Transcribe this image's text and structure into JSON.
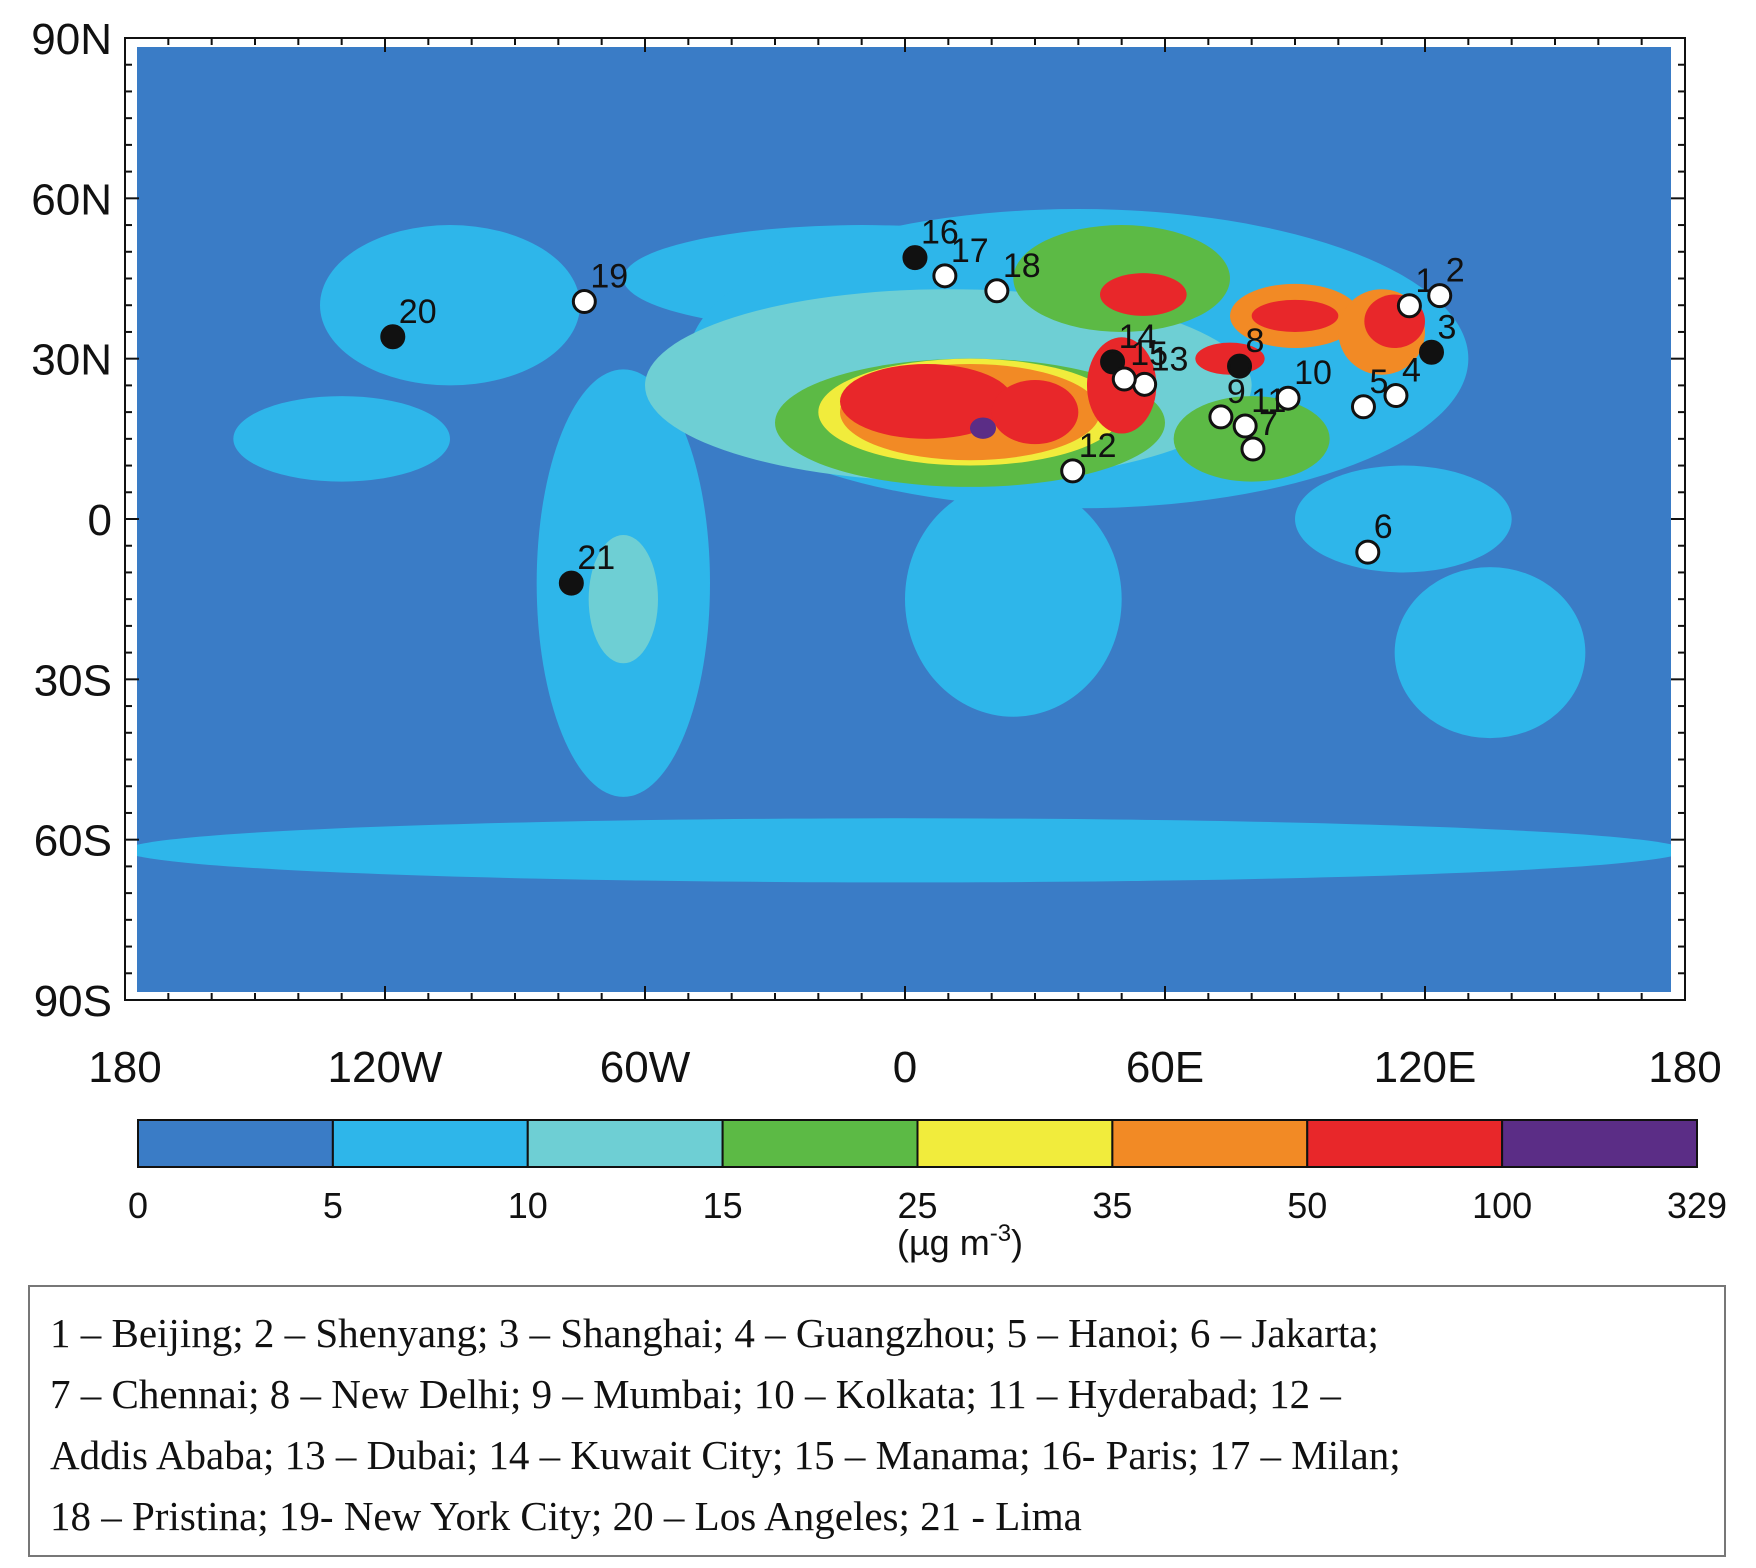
{
  "map": {
    "lat_labels": [
      "90N",
      "60N",
      "30N",
      "0",
      "30S",
      "60S",
      "90S"
    ],
    "lat_values": [
      90,
      60,
      30,
      0,
      -30,
      -60,
      -90
    ],
    "lon_labels": [
      "180",
      "120W",
      "60W",
      "0",
      "60E",
      "120E",
      "180"
    ],
    "lon_values": [
      -180,
      -120,
      -60,
      0,
      60,
      120,
      180
    ],
    "extent": {
      "lon": [
        -180,
        180
      ],
      "lat": [
        -90,
        90
      ]
    },
    "ocean_color": "#3a7cc6",
    "field_blobs": [
      {
        "level": 1,
        "lon": -10,
        "lat": 45,
        "rlon": 55,
        "rlat": 10
      },
      {
        "level": 1,
        "lon": 40,
        "lat": 30,
        "rlon": 90,
        "rlat": 28
      },
      {
        "level": 1,
        "lon": -105,
        "lat": 40,
        "rlon": 30,
        "rlat": 15
      },
      {
        "level": 1,
        "lon": -65,
        "lat": -12,
        "rlon": 20,
        "rlat": 40
      },
      {
        "level": 1,
        "lon": 25,
        "lat": -15,
        "rlon": 25,
        "rlat": 22
      },
      {
        "level": 1,
        "lon": 135,
        "lat": -25,
        "rlon": 22,
        "rlat": 16
      },
      {
        "level": 1,
        "lon": 115,
        "lat": 0,
        "rlon": 25,
        "rlat": 10
      },
      {
        "level": 1,
        "lon": 0,
        "lat": -62,
        "rlon": 180,
        "rlat": 6
      },
      {
        "level": 1,
        "lon": -130,
        "lat": 15,
        "rlon": 25,
        "rlat": 8
      },
      {
        "level": 2,
        "lon": 10,
        "lat": 25,
        "rlon": 70,
        "rlat": 18
      },
      {
        "level": 2,
        "lon": -65,
        "lat": -15,
        "rlon": 8,
        "rlat": 12
      },
      {
        "level": 3,
        "lon": 15,
        "lat": 18,
        "rlon": 45,
        "rlat": 12
      },
      {
        "level": 3,
        "lon": 50,
        "lat": 45,
        "rlon": 25,
        "rlat": 10
      },
      {
        "level": 3,
        "lon": 80,
        "lat": 15,
        "rlon": 18,
        "rlat": 8
      },
      {
        "level": 4,
        "lon": 15,
        "lat": 20,
        "rlon": 35,
        "rlat": 10
      },
      {
        "level": 5,
        "lon": 15,
        "lat": 20,
        "rlon": 30,
        "rlat": 9
      },
      {
        "level": 5,
        "lon": 90,
        "lat": 38,
        "rlon": 15,
        "rlat": 6
      },
      {
        "level": 5,
        "lon": 110,
        "lat": 35,
        "rlon": 10,
        "rlat": 8
      },
      {
        "level": 6,
        "lon": 5,
        "lat": 22,
        "rlon": 20,
        "rlat": 7
      },
      {
        "level": 6,
        "lon": 30,
        "lat": 20,
        "rlon": 10,
        "rlat": 6
      },
      {
        "level": 6,
        "lon": 50,
        "lat": 25,
        "rlon": 8,
        "rlat": 9
      },
      {
        "level": 6,
        "lon": 55,
        "lat": 42,
        "rlon": 10,
        "rlat": 4
      },
      {
        "level": 6,
        "lon": 75,
        "lat": 30,
        "rlon": 8,
        "rlat": 3
      },
      {
        "level": 6,
        "lon": 90,
        "lat": 38,
        "rlon": 10,
        "rlat": 3
      },
      {
        "level": 6,
        "lon": 113,
        "lat": 37,
        "rlon": 7,
        "rlat": 5
      },
      {
        "level": 7,
        "lon": 18,
        "lat": 17,
        "rlon": 3,
        "rlat": 2
      },
      {
        "level": 7,
        "lon": 105,
        "lat": 21,
        "rlon": 2,
        "rlat": 1.5
      }
    ]
  },
  "chart_data": {
    "type": "map",
    "colorbar": {
      "bounds": [
        "0",
        "5",
        "10",
        "15",
        "25",
        "35",
        "50",
        "100",
        "329"
      ],
      "colors": [
        "#3a7cc6",
        "#2eb6ea",
        "#6ecfd4",
        "#5cba45",
        "#f1ec3c",
        "#f28a25",
        "#e8272a",
        "#5b2d86"
      ],
      "unit_main": "(µg m",
      "unit_sup": "-3",
      "unit_close": ")"
    },
    "cities": [
      {
        "label": "1",
        "name": "Beijing",
        "lon": 116.4,
        "lat": 39.9,
        "filled": false
      },
      {
        "label": "2",
        "name": "Shenyang",
        "lon": 123.4,
        "lat": 41.8,
        "filled": false
      },
      {
        "label": "3",
        "name": "Shanghai",
        "lon": 121.5,
        "lat": 31.2,
        "filled": true
      },
      {
        "label": "4",
        "name": "Guangzhou",
        "lon": 113.3,
        "lat": 23.1,
        "filled": false
      },
      {
        "label": "5",
        "name": "Hanoi",
        "lon": 105.8,
        "lat": 21.0,
        "filled": false
      },
      {
        "label": "6",
        "name": "Jakarta",
        "lon": 106.8,
        "lat": -6.2,
        "filled": false
      },
      {
        "label": "7",
        "name": "Chennai",
        "lon": 80.3,
        "lat": 13.1,
        "filled": false
      },
      {
        "label": "8",
        "name": "New Delhi",
        "lon": 77.2,
        "lat": 28.6,
        "filled": true
      },
      {
        "label": "9",
        "name": "Mumbai",
        "lon": 72.9,
        "lat": 19.1,
        "filled": false
      },
      {
        "label": "10",
        "name": "Kolkata",
        "lon": 88.4,
        "lat": 22.6,
        "filled": false
      },
      {
        "label": "11",
        "name": "Hyderabad",
        "lon": 78.5,
        "lat": 17.4,
        "filled": false
      },
      {
        "label": "12",
        "name": "Addis Ababa",
        "lon": 38.7,
        "lat": 9.0,
        "filled": false
      },
      {
        "label": "13",
        "name": "Dubai",
        "lon": 55.3,
        "lat": 25.2,
        "filled": false
      },
      {
        "label": "14",
        "name": "Kuwait City",
        "lon": 47.9,
        "lat": 29.4,
        "filled": true
      },
      {
        "label": "15",
        "name": "Manama",
        "lon": 50.6,
        "lat": 26.2,
        "filled": false
      },
      {
        "label": "16",
        "name": "Paris",
        "lon": 2.3,
        "lat": 48.9,
        "filled": true
      },
      {
        "label": "17",
        "name": "Milan",
        "lon": 9.2,
        "lat": 45.5,
        "filled": false
      },
      {
        "label": "18",
        "name": "Pristina",
        "lon": 21.2,
        "lat": 42.7,
        "filled": false
      },
      {
        "label": "19",
        "name": "New York City",
        "lon": -74.0,
        "lat": 40.7,
        "filled": false
      },
      {
        "label": "20",
        "name": "Los Angeles",
        "lon": -118.2,
        "lat": 34.1,
        "filled": true
      },
      {
        "label": "21",
        "name": "Lima",
        "lon": -77.0,
        "lat": -12.0,
        "filled": true
      }
    ]
  },
  "legend": {
    "lines": [
      "1 – Beijing; 2 – Shenyang; 3 – Shanghai; 4 – Guangzhou; 5 – Hanoi; 6 – Jakarta;",
      "7 – Chennai; 8 – New Delhi; 9 – Mumbai; 10 – Kolkata; 11 – Hyderabad; 12 –",
      "Addis Ababa; 13 – Dubai; 14 – Kuwait City; 15 – Manama; 16- Paris; 17 – Milan;",
      "18 – Pristina; 19- New York City; 20 – Los Angeles; 21 - Lima"
    ]
  }
}
